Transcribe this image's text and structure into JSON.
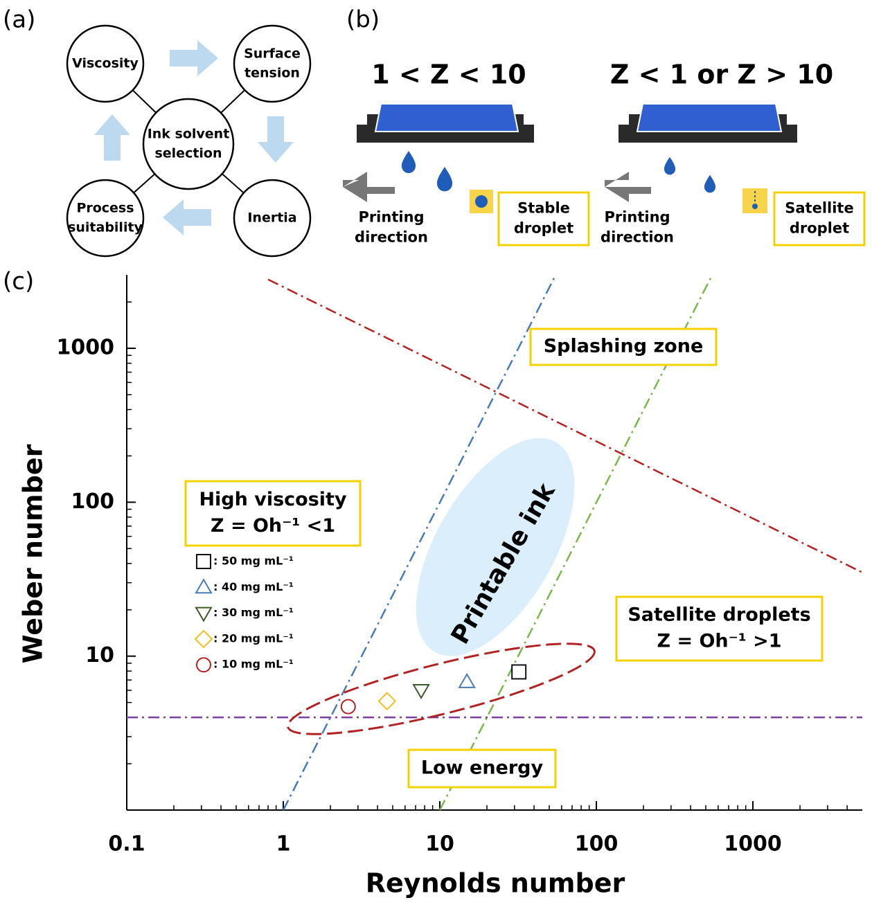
{
  "panel_a": {
    "label": "(a)",
    "nodes": [
      {
        "lines": [
          "Viscosity"
        ]
      },
      {
        "lines": [
          "Surface",
          "tension"
        ]
      },
      {
        "lines": [
          "Ink solvent",
          "selection"
        ]
      },
      {
        "lines": [
          "Inertia"
        ]
      },
      {
        "lines": [
          "Process",
          "suitability"
        ]
      }
    ]
  },
  "panel_b": {
    "label": "(b)",
    "left": {
      "title": "1 < Z < 10",
      "direction": [
        "Printing",
        "direction"
      ],
      "box": [
        "Stable",
        "droplet"
      ]
    },
    "right": {
      "title": "Z < 1 or Z > 10",
      "direction": [
        "Printing",
        "direction"
      ],
      "box": [
        "Satellite",
        "droplet"
      ]
    }
  },
  "panel_c_label": "(c)",
  "chart_data": {
    "type": "scatter",
    "x_label": "Reynolds number",
    "y_label": "Weber number",
    "xscale": "log",
    "yscale": "log",
    "xlim": [
      0.1,
      5000
    ],
    "ylim": [
      1,
      3000
    ],
    "xticks": [
      0.1,
      1,
      10,
      100,
      1000
    ],
    "yticks": [
      10,
      100,
      1000
    ],
    "minor_ticks": true,
    "series": [
      {
        "name": ": 50 mg mL⁻¹",
        "color": "#111111",
        "marker": "square",
        "x": [
          32
        ],
        "values": [
          7.9
        ]
      },
      {
        "name": ": 40 mg mL⁻¹",
        "color": "#4a7ab5",
        "marker": "triangle",
        "x": [
          14.9
        ],
        "values": [
          6.8
        ]
      },
      {
        "name": ": 30 mg mL⁻¹",
        "color": "#3d5a2a",
        "marker": "triangle-down",
        "x": [
          7.6
        ],
        "values": [
          6.0
        ]
      },
      {
        "name": ": 20 mg mL⁻¹",
        "color": "#f0c020",
        "marker": "diamond",
        "x": [
          4.6
        ],
        "values": [
          5.1
        ]
      },
      {
        "name": ": 10 mg mL⁻¹",
        "color": "#b22222",
        "marker": "circle",
        "x": [
          2.6
        ],
        "values": [
          4.7
        ]
      }
    ],
    "reference_lines": [
      {
        "color": "#4a7ab5",
        "x": [
          1,
          55
        ],
        "values": [
          1,
          3000
        ]
      },
      {
        "color": "#7ab648",
        "x": [
          10,
          550
        ],
        "values": [
          1,
          3000
        ]
      },
      {
        "color": "#7b3fa0",
        "x": [
          0.1,
          5000
        ],
        "values": [
          4,
          4
        ]
      },
      {
        "color": "#b22222",
        "x": [
          0.8,
          5000
        ],
        "values": [
          2800,
          35
        ]
      }
    ],
    "annotations": [
      {
        "lines": [
          "Splashing zone"
        ]
      },
      {
        "lines": [
          "High viscosity",
          "Z = Oh⁻¹ <1"
        ]
      },
      {
        "lines": [
          "Satellite droplets",
          "Z = Oh⁻¹ >1"
        ]
      },
      {
        "lines": [
          "Low energy"
        ]
      },
      {
        "lines": [
          "Printable ink"
        ]
      }
    ]
  }
}
